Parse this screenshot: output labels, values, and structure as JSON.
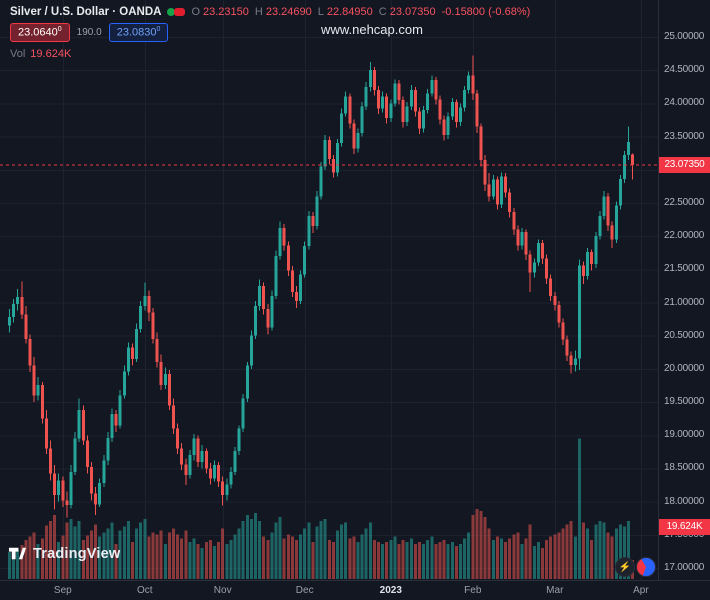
{
  "header": {
    "symbol_title": "Silver / U.S. Dollar · OANDA",
    "ohlc": {
      "o_label": "O",
      "o": "23.23150",
      "h_label": "H",
      "h": "23.24690",
      "l_label": "L",
      "l": "22.84950",
      "c_label": "C",
      "c": "23.07350",
      "change": "-0.15800 (-0.68%)"
    },
    "bid": "23.0640",
    "bid_sup": "0",
    "spread": "190.0",
    "ask": "23.0830",
    "ask_sup": "0",
    "vol_label": "Vol",
    "vol_value": "19.624K"
  },
  "watermark": "www.nehcap.com",
  "price_axis": {
    "labels": [
      "25.00000",
      "24.50000",
      "24.00000",
      "23.50000",
      "23.00000",
      "22.50000",
      "22.00000",
      "21.50000",
      "21.00000",
      "20.50000",
      "20.00000",
      "19.50000",
      "19.00000",
      "18.50000",
      "18.00000",
      "17.50000",
      "17.00000"
    ],
    "last_price_label": "23.07350",
    "vol_badge": "19.624K"
  },
  "time_axis": {
    "ticks": [
      {
        "label": "Sep",
        "index": 13
      },
      {
        "label": "Oct",
        "index": 33
      },
      {
        "label": "Nov",
        "index": 52
      },
      {
        "label": "Dec",
        "index": 72
      },
      {
        "label": "2023",
        "index": 93,
        "strong": true
      },
      {
        "label": "Feb",
        "index": 113
      },
      {
        "label": "Mar",
        "index": 133
      },
      {
        "label": "Apr",
        "index": 154
      }
    ]
  },
  "footer": {
    "logo_text": "TradingView"
  },
  "colors": {
    "bg": "#131722",
    "grid": "#1c2230",
    "up": "#26a69a",
    "down": "#ef5350",
    "vol_up": "rgba(38,166,154,0.55)",
    "vol_down": "rgba(239,83,80,0.55)",
    "axis_text": "#b2b5be",
    "badge": "#f23645",
    "accent_blue": "#2962ff"
  },
  "chart_data": {
    "type": "candlestick",
    "title": "Silver / U.S. Dollar · OANDA",
    "price_range": [
      17.0,
      25.0
    ],
    "price_step": 0.5,
    "x_ticks": [
      "Sep",
      "Oct",
      "Nov",
      "Dec",
      "2023",
      "Feb",
      "Mar",
      "Apr"
    ],
    "volume_unit": "K",
    "last_close": 23.0735,
    "candles_format": [
      "open",
      "high",
      "low",
      "close",
      "volume_K"
    ],
    "candles": [
      [
        20.65,
        20.9,
        20.55,
        20.78,
        28
      ],
      [
        20.78,
        21.05,
        20.7,
        20.98,
        32
      ],
      [
        20.98,
        21.2,
        20.88,
        21.08,
        30
      ],
      [
        21.08,
        21.32,
        20.75,
        20.82,
        35
      ],
      [
        20.82,
        20.95,
        20.38,
        20.45,
        40
      ],
      [
        20.45,
        20.52,
        19.95,
        20.05,
        44
      ],
      [
        20.05,
        20.18,
        19.5,
        19.6,
        48
      ],
      [
        19.6,
        19.88,
        19.52,
        19.76,
        36
      ],
      [
        19.76,
        19.8,
        19.18,
        19.25,
        42
      ],
      [
        19.25,
        19.38,
        18.72,
        18.8,
        55
      ],
      [
        18.8,
        18.92,
        18.32,
        18.42,
        60
      ],
      [
        18.42,
        18.55,
        17.88,
        18.1,
        66
      ],
      [
        18.1,
        18.42,
        18.0,
        18.32,
        38
      ],
      [
        18.32,
        18.38,
        17.92,
        18.02,
        45
      ],
      [
        18.02,
        18.15,
        17.76,
        17.95,
        58
      ],
      [
        17.95,
        18.55,
        17.9,
        18.45,
        62
      ],
      [
        18.45,
        19.05,
        18.4,
        18.95,
        54
      ],
      [
        18.95,
        19.55,
        18.9,
        19.38,
        60
      ],
      [
        19.38,
        19.45,
        18.85,
        18.92,
        40
      ],
      [
        18.92,
        19.0,
        18.42,
        18.52,
        45
      ],
      [
        18.52,
        18.6,
        18.02,
        18.12,
        50
      ],
      [
        18.12,
        18.22,
        17.8,
        17.96,
        56
      ],
      [
        17.96,
        18.35,
        17.92,
        18.28,
        44
      ],
      [
        18.28,
        18.7,
        18.22,
        18.62,
        48
      ],
      [
        18.62,
        19.05,
        18.55,
        18.96,
        52
      ],
      [
        18.96,
        19.4,
        18.9,
        19.32,
        58
      ],
      [
        19.32,
        19.38,
        19.05,
        19.15,
        36
      ],
      [
        19.15,
        19.68,
        19.1,
        19.6,
        50
      ],
      [
        19.6,
        20.05,
        19.55,
        19.96,
        54
      ],
      [
        19.96,
        20.4,
        19.9,
        20.32,
        60
      ],
      [
        20.32,
        20.38,
        20.05,
        20.15,
        38
      ],
      [
        20.15,
        20.68,
        20.1,
        20.6,
        52
      ],
      [
        20.6,
        21.02,
        20.55,
        20.95,
        58
      ],
      [
        20.95,
        21.3,
        20.88,
        21.1,
        62
      ],
      [
        21.1,
        21.18,
        20.72,
        20.85,
        44
      ],
      [
        20.85,
        20.92,
        20.38,
        20.45,
        48
      ],
      [
        20.45,
        20.55,
        20.02,
        20.1,
        46
      ],
      [
        20.1,
        20.22,
        19.68,
        19.76,
        50
      ],
      [
        19.76,
        20.02,
        19.7,
        19.92,
        36
      ],
      [
        19.92,
        19.98,
        19.38,
        19.45,
        48
      ],
      [
        19.45,
        19.55,
        19.02,
        19.1,
        52
      ],
      [
        19.1,
        19.18,
        18.72,
        18.8,
        46
      ],
      [
        18.8,
        18.88,
        18.48,
        18.56,
        42
      ],
      [
        18.56,
        18.65,
        18.25,
        18.4,
        50
      ],
      [
        18.4,
        18.78,
        18.35,
        18.7,
        38
      ],
      [
        18.7,
        19.02,
        18.62,
        18.95,
        42
      ],
      [
        18.95,
        19.0,
        18.52,
        18.6,
        36
      ],
      [
        18.6,
        18.85,
        18.5,
        18.76,
        32
      ],
      [
        18.76,
        18.8,
        18.42,
        18.5,
        38
      ],
      [
        18.5,
        18.58,
        18.26,
        18.35,
        40
      ],
      [
        18.35,
        18.62,
        18.3,
        18.55,
        34
      ],
      [
        18.55,
        18.6,
        18.22,
        18.3,
        38
      ],
      [
        18.3,
        18.38,
        17.94,
        18.1,
        52
      ],
      [
        18.1,
        18.35,
        18.02,
        18.26,
        36
      ],
      [
        18.26,
        18.52,
        18.2,
        18.45,
        40
      ],
      [
        18.45,
        18.82,
        18.4,
        18.76,
        46
      ],
      [
        18.76,
        19.15,
        18.7,
        19.1,
        52
      ],
      [
        19.1,
        19.62,
        19.05,
        19.55,
        60
      ],
      [
        19.55,
        20.1,
        19.5,
        20.05,
        66
      ],
      [
        20.05,
        20.58,
        20.0,
        20.5,
        62
      ],
      [
        20.5,
        21.02,
        20.45,
        20.95,
        68
      ],
      [
        20.95,
        21.35,
        20.88,
        21.25,
        60
      ],
      [
        21.25,
        21.3,
        20.82,
        20.9,
        44
      ],
      [
        20.9,
        20.98,
        20.52,
        20.62,
        40
      ],
      [
        20.62,
        21.18,
        20.58,
        21.1,
        48
      ],
      [
        21.1,
        21.78,
        21.05,
        21.7,
        58
      ],
      [
        21.7,
        22.22,
        21.65,
        22.12,
        64
      ],
      [
        22.12,
        22.18,
        21.78,
        21.86,
        42
      ],
      [
        21.86,
        21.92,
        21.4,
        21.48,
        46
      ],
      [
        21.48,
        21.55,
        21.08,
        21.16,
        44
      ],
      [
        21.16,
        21.25,
        20.92,
        21.02,
        40
      ],
      [
        21.02,
        21.48,
        20.98,
        21.42,
        46
      ],
      [
        21.42,
        21.92,
        21.38,
        21.85,
        52
      ],
      [
        21.85,
        22.38,
        21.8,
        22.3,
        58
      ],
      [
        22.3,
        22.36,
        22.05,
        22.15,
        38
      ],
      [
        22.15,
        22.68,
        22.1,
        22.6,
        54
      ],
      [
        22.6,
        23.12,
        22.55,
        23.05,
        60
      ],
      [
        23.05,
        23.52,
        23.0,
        23.45,
        62
      ],
      [
        23.45,
        23.5,
        23.08,
        23.16,
        40
      ],
      [
        23.16,
        23.22,
        22.88,
        22.96,
        38
      ],
      [
        22.96,
        23.46,
        22.9,
        23.4,
        50
      ],
      [
        23.4,
        23.92,
        23.35,
        23.85,
        56
      ],
      [
        23.85,
        24.18,
        23.8,
        24.1,
        58
      ],
      [
        24.1,
        24.15,
        23.62,
        23.7,
        42
      ],
      [
        23.7,
        23.76,
        23.24,
        23.32,
        44
      ],
      [
        23.32,
        23.62,
        23.26,
        23.55,
        38
      ],
      [
        23.55,
        24.02,
        23.5,
        23.95,
        46
      ],
      [
        23.95,
        24.32,
        23.9,
        24.25,
        52
      ],
      [
        24.25,
        24.62,
        24.18,
        24.5,
        58
      ],
      [
        24.5,
        24.55,
        24.12,
        24.2,
        40
      ],
      [
        24.2,
        24.26,
        23.84,
        23.92,
        38
      ],
      [
        23.92,
        24.18,
        23.86,
        24.1,
        36
      ],
      [
        24.1,
        24.15,
        23.7,
        23.78,
        38
      ],
      [
        23.78,
        24.06,
        23.72,
        24.0,
        40
      ],
      [
        24.0,
        24.36,
        23.95,
        24.3,
        44
      ],
      [
        24.3,
        24.35,
        23.98,
        24.05,
        36
      ],
      [
        24.05,
        24.1,
        23.64,
        23.72,
        40
      ],
      [
        23.72,
        24.02,
        23.66,
        23.95,
        38
      ],
      [
        23.95,
        24.28,
        23.9,
        24.2,
        42
      ],
      [
        24.2,
        24.25,
        23.8,
        23.88,
        36
      ],
      [
        23.88,
        23.94,
        23.54,
        23.62,
        38
      ],
      [
        23.62,
        23.96,
        23.56,
        23.9,
        36
      ],
      [
        23.9,
        24.22,
        23.85,
        24.15,
        40
      ],
      [
        24.15,
        24.42,
        24.1,
        24.35,
        44
      ],
      [
        24.35,
        24.4,
        23.98,
        24.06,
        36
      ],
      [
        24.06,
        24.12,
        23.68,
        23.76,
        38
      ],
      [
        23.76,
        23.82,
        23.44,
        23.52,
        40
      ],
      [
        23.52,
        23.86,
        23.46,
        23.8,
        36
      ],
      [
        23.8,
        24.08,
        23.75,
        24.02,
        38
      ],
      [
        24.02,
        24.06,
        23.64,
        23.72,
        34
      ],
      [
        23.72,
        24.0,
        23.66,
        23.94,
        36
      ],
      [
        23.94,
        24.26,
        23.88,
        24.2,
        42
      ],
      [
        24.2,
        24.48,
        24.15,
        24.42,
        48
      ],
      [
        24.42,
        24.72,
        24.05,
        24.15,
        66
      ],
      [
        24.15,
        24.2,
        23.55,
        23.65,
        72
      ],
      [
        23.65,
        23.7,
        23.05,
        23.15,
        70
      ],
      [
        23.15,
        23.22,
        22.68,
        22.78,
        64
      ],
      [
        22.78,
        22.95,
        22.52,
        22.6,
        52
      ],
      [
        22.6,
        22.92,
        22.55,
        22.85,
        40
      ],
      [
        22.85,
        22.9,
        22.4,
        22.48,
        44
      ],
      [
        22.48,
        22.96,
        22.42,
        22.9,
        42
      ],
      [
        22.9,
        22.95,
        22.58,
        22.66,
        38
      ],
      [
        22.66,
        22.72,
        22.28,
        22.36,
        42
      ],
      [
        22.36,
        22.42,
        22.02,
        22.1,
        46
      ],
      [
        22.1,
        22.16,
        21.78,
        21.86,
        48
      ],
      [
        21.86,
        22.12,
        21.8,
        22.06,
        36
      ],
      [
        22.06,
        22.1,
        21.64,
        21.72,
        42
      ],
      [
        21.72,
        21.78,
        21.16,
        21.45,
        56
      ],
      [
        21.45,
        21.66,
        21.38,
        21.6,
        34
      ],
      [
        21.6,
        21.95,
        21.55,
        21.9,
        38
      ],
      [
        21.9,
        21.94,
        21.58,
        21.66,
        32
      ],
      [
        21.66,
        21.72,
        21.28,
        21.36,
        40
      ],
      [
        21.36,
        21.42,
        21.02,
        21.1,
        44
      ],
      [
        21.1,
        21.16,
        20.88,
        20.96,
        46
      ],
      [
        20.96,
        21.02,
        20.62,
        20.7,
        48
      ],
      [
        20.7,
        20.76,
        20.36,
        20.44,
        52
      ],
      [
        20.44,
        20.5,
        20.12,
        20.2,
        56
      ],
      [
        20.2,
        20.26,
        19.93,
        20.06,
        60
      ],
      [
        20.06,
        20.28,
        19.96,
        20.16,
        44
      ],
      [
        20.16,
        21.65,
        19.98,
        21.56,
        145
      ],
      [
        21.56,
        21.62,
        21.28,
        21.4,
        58
      ],
      [
        21.4,
        21.82,
        21.35,
        21.76,
        52
      ],
      [
        21.76,
        21.8,
        21.48,
        21.58,
        40
      ],
      [
        21.58,
        22.06,
        21.52,
        22.0,
        56
      ],
      [
        22.0,
        22.38,
        21.95,
        22.3,
        60
      ],
      [
        22.3,
        22.68,
        22.25,
        22.6,
        58
      ],
      [
        22.6,
        22.65,
        22.08,
        22.16,
        48
      ],
      [
        22.16,
        22.22,
        21.82,
        21.95,
        44
      ],
      [
        21.95,
        22.52,
        21.9,
        22.46,
        52
      ],
      [
        22.46,
        22.92,
        22.4,
        22.86,
        56
      ],
      [
        22.86,
        23.28,
        22.8,
        23.22,
        54
      ],
      [
        23.22,
        23.65,
        23.15,
        23.42,
        60
      ],
      [
        23.2315,
        23.2469,
        22.8495,
        23.0735,
        19.624
      ]
    ]
  }
}
